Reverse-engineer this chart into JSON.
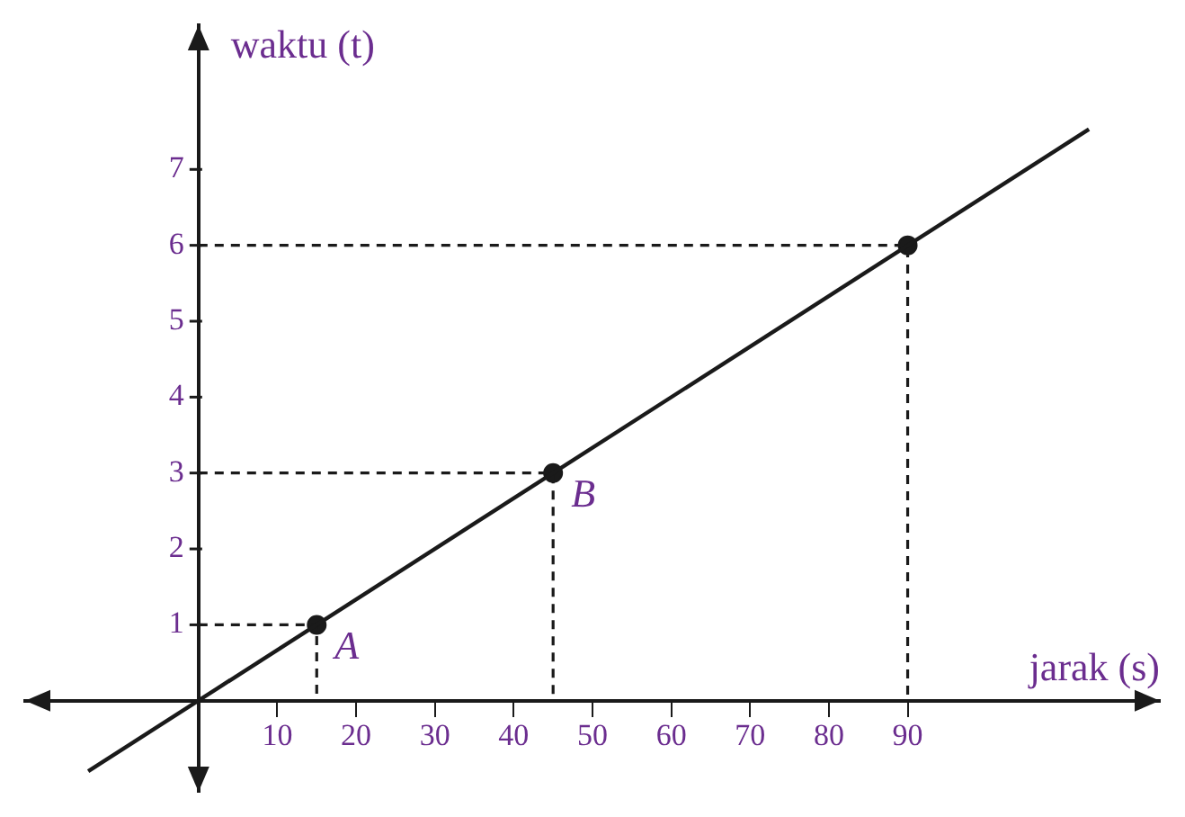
{
  "chart_data": {
    "type": "line",
    "xlabel": "jarak (s)",
    "ylabel": "waktu (t)",
    "xlim": [
      -22,
      122
    ],
    "ylim": [
      -1.2,
      8.9
    ],
    "xticks": [
      10,
      20,
      30,
      40,
      50,
      60,
      70,
      80,
      90
    ],
    "yticks": [
      1,
      2,
      3,
      4,
      5,
      6,
      7
    ],
    "series": [
      {
        "color": "#1a1a1a",
        "x": [
          -14,
          113
        ],
        "values": [
          -0.93,
          7.53
        ]
      },
      {
        "type": "line",
        "line_style": "dashed",
        "color": "#1a1a1a",
        "x": [
          0,
          15,
          15
        ],
        "values": [
          1,
          1,
          0
        ]
      },
      {
        "type": "line",
        "line_style": "dashed",
        "color": "#1a1a1a",
        "x": [
          0,
          45,
          45
        ],
        "values": [
          3,
          3,
          0
        ]
      },
      {
        "type": "line",
        "line_style": "dashed",
        "color": "#1a1a1a",
        "x": [
          0,
          90,
          90
        ],
        "values": [
          6,
          6,
          0
        ]
      },
      {
        "type": "scatter",
        "color": "#1a1a1a",
        "x": [
          15,
          45,
          90
        ],
        "values": [
          1,
          3,
          6
        ]
      }
    ],
    "annotations": [
      {
        "text": "A",
        "x": 15,
        "y": 1
      },
      {
        "text": "B",
        "x": 45,
        "y": 3
      }
    ],
    "grid": false
  }
}
